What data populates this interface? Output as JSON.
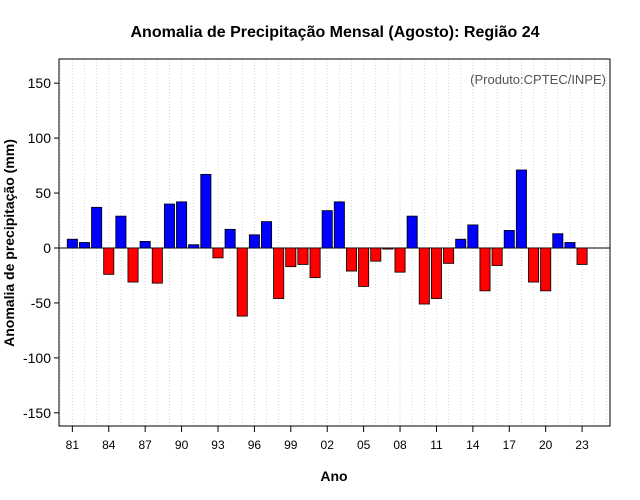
{
  "chart_data": {
    "type": "bar",
    "title": "Anomalia de Precipitação Mensal (Agosto): Região 24",
    "xlabel": "Ano",
    "ylabel": "Anomalia de precipitação (mm)",
    "credit": "(Produto:CPTEC/INPE)",
    "ylim": [
      -162,
      172
    ],
    "yticks": [
      -150,
      -100,
      -50,
      0,
      50,
      100,
      150
    ],
    "xlim": [
      1979.9,
      2025.3
    ],
    "xticks": [
      {
        "year": 1981,
        "label": "81"
      },
      {
        "year": 1984,
        "label": "84"
      },
      {
        "year": 1987,
        "label": "87"
      },
      {
        "year": 1990,
        "label": "90"
      },
      {
        "year": 1993,
        "label": "93"
      },
      {
        "year": 1996,
        "label": "96"
      },
      {
        "year": 1999,
        "label": "99"
      },
      {
        "year": 2002,
        "label": "02"
      },
      {
        "year": 2005,
        "label": "05"
      },
      {
        "year": 2008,
        "label": "08"
      },
      {
        "year": 2011,
        "label": "11"
      },
      {
        "year": 2014,
        "label": "14"
      },
      {
        "year": 2017,
        "label": "17"
      },
      {
        "year": 2020,
        "label": "20"
      },
      {
        "year": 2023,
        "label": "23"
      }
    ],
    "years": [
      1981,
      1982,
      1983,
      1984,
      1985,
      1986,
      1987,
      1988,
      1989,
      1990,
      1991,
      1992,
      1993,
      1994,
      1995,
      1996,
      1997,
      1998,
      1999,
      2000,
      2001,
      2002,
      2003,
      2004,
      2005,
      2006,
      2007,
      2008,
      2009,
      2010,
      2011,
      2012,
      2013,
      2014,
      2015,
      2016,
      2017,
      2018,
      2019,
      2020,
      2021,
      2022,
      2023
    ],
    "values": [
      8,
      5,
      37,
      -24,
      29,
      -31,
      6,
      -32,
      40,
      42,
      3,
      67,
      -9,
      17,
      -62,
      12,
      24,
      -46,
      -17,
      -15,
      -27,
      34,
      42,
      -21,
      -35,
      -12,
      -1,
      -22,
      29,
      -51,
      -46,
      -14,
      8,
      21,
      -39,
      -16,
      16,
      71,
      -31,
      -39,
      13,
      5,
      -15
    ],
    "colors": {
      "positive": "#0000ff",
      "negative": "#ff0000",
      "zero_line": "#000000",
      "grid": "#cccccc"
    }
  }
}
